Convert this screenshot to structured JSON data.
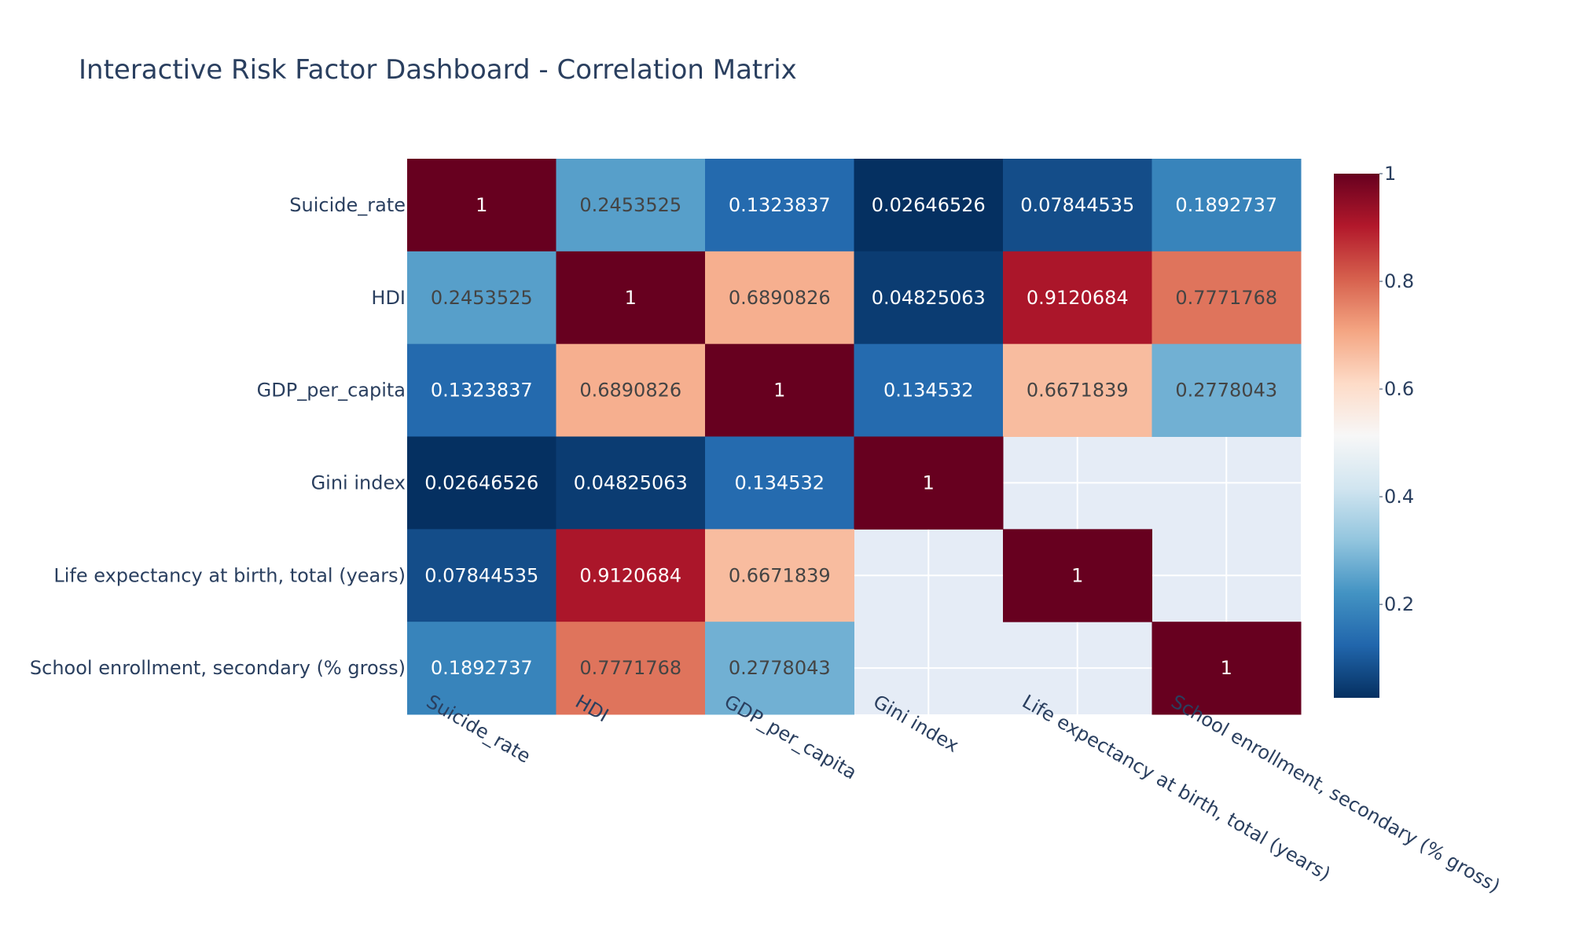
{
  "chart_data": {
    "type": "heatmap",
    "title": "Interactive Risk Factor Dashboard - Correlation Matrix",
    "variables": [
      "Suicide_rate",
      "HDI",
      "GDP_per_capita",
      "Gini index",
      "Life expectancy at birth, total (years)",
      "School enrollment, secondary (% gross)"
    ],
    "matrix": [
      [
        "1",
        "0.2453525",
        "0.1323837",
        "0.02646526",
        "0.07844535",
        "0.1892737"
      ],
      [
        "0.2453525",
        "1",
        "0.6890826",
        "0.04825063",
        "0.9120684",
        "0.7771768"
      ],
      [
        "0.1323837",
        "0.6890826",
        "1",
        "0.134532",
        "0.6671839",
        "0.2778043"
      ],
      [
        "0.02646526",
        "0.04825063",
        "0.134532",
        "1",
        null,
        null
      ],
      [
        "0.07844535",
        "0.9120684",
        "0.6671839",
        null,
        "1",
        null
      ],
      [
        "0.1892737",
        "0.7771768",
        "0.2778043",
        null,
        null,
        "1"
      ]
    ],
    "colorscale": "RdBu_r",
    "zrange": [
      0.02646526,
      1
    ],
    "colorbar": {
      "ticks": [
        0.2,
        0.4,
        0.6,
        0.8,
        1
      ],
      "tick_labels": [
        "0.2",
        "0.4",
        "0.6",
        "0.8",
        "1"
      ]
    },
    "missing_color": "#e5ecf6",
    "grid": true,
    "x_tick_rotation": "diagonal"
  }
}
